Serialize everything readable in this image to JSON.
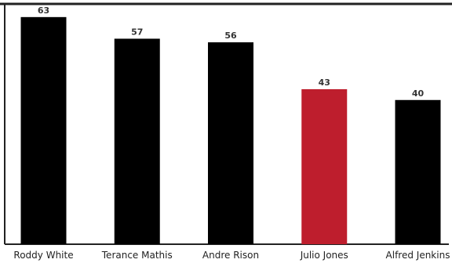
{
  "chart_data": {
    "type": "bar",
    "title": "",
    "xlabel": "",
    "ylabel": "",
    "categories": [
      "Roddy White",
      "Terance Mathis",
      "Andre Rison",
      "Julio Jones",
      "Alfred Jenkins"
    ],
    "values": [
      63,
      57,
      56,
      43,
      40
    ],
    "highlight_index": 3,
    "ylim": [
      0,
      66
    ],
    "grid": false,
    "legend": "none",
    "colors": {
      "bar": "#000000",
      "highlight": "#be1e2d",
      "frame": "#222222",
      "background": "#ffffff"
    }
  }
}
